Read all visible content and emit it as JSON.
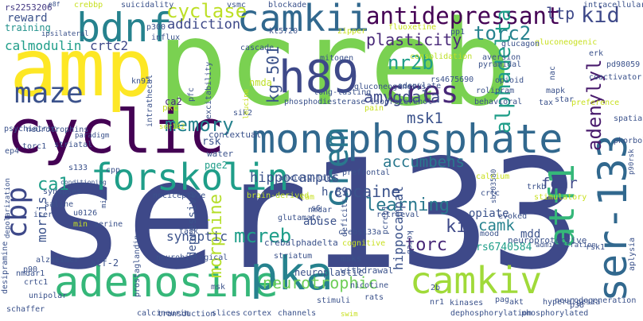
{
  "words": [
    {
      "text": "pcreb",
      "color": "#7ad151"
    },
    {
      "text": "ser133",
      "color": "#3e4989"
    },
    {
      "text": "amp",
      "color": "#fde725"
    },
    {
      "text": "monophosphate",
      "color": "#31688e"
    },
    {
      "text": "cyclic",
      "color": "#440154"
    },
    {
      "text": "camkii",
      "color": "#31688e"
    },
    {
      "text": "adenosine",
      "color": "#35b779"
    },
    {
      "text": "pka",
      "color": "#26828e"
    },
    {
      "text": "forskolin",
      "color": "#1f9e89"
    },
    {
      "text": "bdnf",
      "color": "#26828e"
    },
    {
      "text": "camkiv",
      "color": "#a0da39"
    },
    {
      "text": "ser-133",
      "color": "#31688e"
    },
    {
      "text": "crem",
      "color": "#2a788e"
    },
    {
      "text": "h89",
      "color": "#3e4989"
    },
    {
      "text": "atf1",
      "color": "#35b779"
    },
    {
      "text": "antidepressant",
      "color": "#440154"
    },
    {
      "text": "maze",
      "color": "#3b528b"
    },
    {
      "text": "cbp",
      "color": "#3e4989"
    },
    {
      "text": "cres",
      "color": "#482878"
    },
    {
      "text": "kid",
      "color": "#3e4989"
    },
    {
      "text": "torc2",
      "color": "#26828e"
    },
    {
      "text": "nr2b",
      "color": "#1f9e89"
    },
    {
      "text": "alphadelta",
      "color": "#1f9e89"
    },
    {
      "text": "adenylyl",
      "color": "#481a6c"
    },
    {
      "text": "memory",
      "color": "#26828e"
    },
    {
      "text": "cyclase",
      "color": "#bddf26"
    },
    {
      "text": "plasticity",
      "color": "#482878"
    },
    {
      "text": "amygdala",
      "color": "#3e4989"
    },
    {
      "text": "msk1",
      "color": "#3b528b"
    },
    {
      "text": "kg-501",
      "color": "#3b528b"
    },
    {
      "text": "accumbens",
      "color": "#2a788e"
    },
    {
      "text": "cocaine",
      "color": "#3b528b"
    },
    {
      "text": "mcreb",
      "color": "#1f9e89"
    },
    {
      "text": "morphine",
      "color": "#b5de2b"
    },
    {
      "text": "neurotrophic",
      "color": "#6ece58"
    },
    {
      "text": "ca1",
      "color": "#1f9e89"
    },
    {
      "text": "learning",
      "color": "#2a788e"
    },
    {
      "text": "hippocampus",
      "color": "#3b528b"
    },
    {
      "text": "morris",
      "color": "#3b528b"
    },
    {
      "text": "torc",
      "color": "#482878"
    },
    {
      "text": "kix",
      "color": "#3e4989"
    },
    {
      "text": "camk",
      "color": "#26828e"
    },
    {
      "text": "fear",
      "color": "#3e4989"
    },
    {
      "text": "ltp",
      "color": "#3e4989"
    },
    {
      "text": "addiction",
      "color": "#3e4989"
    },
    {
      "text": "calmodulin",
      "color": "#1f9e89"
    },
    {
      "text": "crtc2",
      "color": "#3e4989"
    },
    {
      "text": "reward",
      "color": "#3b528b"
    },
    {
      "text": "training",
      "color": "#21918c"
    },
    {
      "text": "rs2253206",
      "color": "#443983"
    },
    {
      "text": "ca2",
      "color": "#482878"
    },
    {
      "text": "synaptic",
      "color": "#3b528b"
    },
    {
      "text": "depressive",
      "color": "#3b528b"
    },
    {
      "text": "hippocampal",
      "color": "#3b528b"
    },
    {
      "text": "abuse",
      "color": "#3b528b"
    },
    {
      "text": "opiate",
      "color": "#3b528b"
    },
    {
      "text": "mdd",
      "color": "#3b528b"
    },
    {
      "text": "h-89",
      "color": "#3b528b"
    },
    {
      "text": "rs6740584",
      "color": "#1f9e89"
    },
    {
      "text": "nmda",
      "color": "#bddf26"
    },
    {
      "text": "rsk",
      "color": "#3b528b"
    },
    {
      "text": "contextual",
      "color": "#3b528b"
    },
    {
      "text": "pge2",
      "color": "#1f9e89"
    },
    {
      "text": "water",
      "color": "#3b528b"
    },
    {
      "text": "atf-2",
      "color": "#3b528b"
    },
    {
      "text": "neuroplastic",
      "color": "#3b528b"
    },
    {
      "text": "crebalphadelta",
      "color": "#3b528b"
    },
    {
      "text": "msks",
      "color": "#3b528b"
    },
    {
      "text": "withdrawal",
      "color": "#3b528b"
    },
    {
      "text": "neuroprotective",
      "color": "#3b528b"
    },
    {
      "text": "cognitive",
      "color": "#c8e020"
    },
    {
      "text": "crebs133a",
      "color": "#3b528b"
    },
    {
      "text": "mood",
      "color": "#3b528b"
    },
    {
      "text": "task",
      "color": "#3b528b"
    },
    {
      "text": "long-lasting",
      "color": "#3b528b"
    },
    {
      "text": "mitogen",
      "color": "#3b528b"
    },
    {
      "text": "influx",
      "color": "#3b528b"
    },
    {
      "text": "p300",
      "color": "#3b528b"
    },
    {
      "text": "nicotine",
      "color": "#3b528b"
    },
    {
      "text": "prefrontal",
      "color": "#3b528b"
    },
    {
      "text": "anxiety-like",
      "color": "#3b528b"
    },
    {
      "text": "phosphodiesterase",
      "color": "#3b528b"
    },
    {
      "text": "isoproterenol",
      "color": "#3b528b"
    },
    {
      "text": "behavioral",
      "color": "#3b528b"
    },
    {
      "text": "tax",
      "color": "#3b528b"
    },
    {
      "text": "preference",
      "color": "#c8e020"
    },
    {
      "text": "rolipram",
      "color": "#3b528b"
    },
    {
      "text": "rs4675690",
      "color": "#3b528b"
    },
    {
      "text": "opioid",
      "color": "#3b528b"
    },
    {
      "text": "adenylate",
      "color": "#3b528b"
    },
    {
      "text": "consolidation",
      "color": "#bddf26"
    },
    {
      "text": "gluconeogenic",
      "color": "#c8e020"
    },
    {
      "text": "glucagon",
      "color": "#3b528b"
    },
    {
      "text": "erk",
      "color": "#3b528b"
    },
    {
      "text": "coactivator",
      "color": "#3b528b"
    },
    {
      "text": "pd98059",
      "color": "#3b528b"
    },
    {
      "text": "calcineurin",
      "color": "#3b528b"
    },
    {
      "text": "dephosphorylation",
      "color": "#3b528b"
    },
    {
      "text": "phosphorylated",
      "color": "#3b528b"
    },
    {
      "text": "hyperalgesia",
      "color": "#3b528b"
    },
    {
      "text": "neurodegeneration",
      "color": "#3b528b"
    },
    {
      "text": "akt",
      "color": "#3b528b"
    },
    {
      "text": "p38",
      "color": "#3b528b"
    },
    {
      "text": "kinases",
      "color": "#3b528b"
    },
    {
      "text": "pag",
      "color": "#3b528b"
    },
    {
      "text": "nr1",
      "color": "#3b528b"
    },
    {
      "text": "rats",
      "color": "#3b528b"
    },
    {
      "text": "stimuli",
      "color": "#3b528b"
    },
    {
      "text": "channels",
      "color": "#3b528b"
    },
    {
      "text": "cortex",
      "color": "#3b528b"
    },
    {
      "text": "slices",
      "color": "#3b528b"
    },
    {
      "text": "transduction",
      "color": "#3b528b"
    },
    {
      "text": "schaffer",
      "color": "#3b528b"
    },
    {
      "text": "unipolar",
      "color": "#3b528b"
    },
    {
      "text": "desipramine",
      "color": "#3b528b"
    },
    {
      "text": "crtc1",
      "color": "#3b528b"
    },
    {
      "text": "p90",
      "color": "#3b528b"
    },
    {
      "text": "alzheimer",
      "color": "#3b528b"
    },
    {
      "text": "prostaglandin",
      "color": "#3b528b"
    },
    {
      "text": "neurobiological",
      "color": "#3b528b"
    },
    {
      "text": "striatum",
      "color": "#3b528b"
    },
    {
      "text": "nmdar",
      "color": "#3b528b"
    },
    {
      "text": "glutamate",
      "color": "#3b528b"
    },
    {
      "text": "msk",
      "color": "#3b528b"
    },
    {
      "text": "kcreb",
      "color": "#3b528b"
    },
    {
      "text": "retrieval",
      "color": "#3b528b"
    },
    {
      "text": "pcreb1",
      "color": "#3b528b"
    },
    {
      "text": "deficits",
      "color": "#3b528b"
    },
    {
      "text": "s6",
      "color": "#3b528b"
    },
    {
      "text": "brain-derived",
      "color": "#bddf26"
    },
    {
      "text": "nociceptive",
      "color": "#3b528b"
    },
    {
      "text": "serine",
      "color": "#3b528b"
    },
    {
      "text": "u0126",
      "color": "#3b528b"
    },
    {
      "text": "saline",
      "color": "#3b528b"
    },
    {
      "text": "synapses",
      "color": "#3b528b"
    },
    {
      "text": "conditioning",
      "color": "#3b528b"
    },
    {
      "text": "cpp",
      "color": "#3b528b"
    },
    {
      "text": "s133",
      "color": "#3b528b"
    },
    {
      "text": "ep4",
      "color": "#3b528b"
    },
    {
      "text": "torc1",
      "color": "#3b528b"
    },
    {
      "text": "striatal",
      "color": "#3b528b"
    },
    {
      "text": "neurotrophins",
      "color": "#3b528b"
    },
    {
      "text": "psychiatric",
      "color": "#3b528b"
    },
    {
      "text": "kn93",
      "color": "#3b528b"
    },
    {
      "text": "pkc",
      "color": "#c8e020"
    },
    {
      "text": "pfc",
      "color": "#3b528b"
    },
    {
      "text": "excitability",
      "color": "#3b528b"
    },
    {
      "text": "sik2",
      "color": "#3b528b"
    },
    {
      "text": "cascade",
      "color": "#3b528b"
    },
    {
      "text": "kt5720",
      "color": "#3b528b"
    },
    {
      "text": "zipper",
      "color": "#c8e020"
    },
    {
      "text": "fluoxetine",
      "color": "#c8e020"
    },
    {
      "text": "pp1",
      "color": "#3b528b"
    },
    {
      "text": "gluconeogenesis",
      "color": "#3b528b"
    },
    {
      "text": "pain",
      "color": "#c8e020"
    },
    {
      "text": "star",
      "color": "#3b528b"
    },
    {
      "text": "aversion",
      "color": "#3b528b"
    },
    {
      "text": "pyramidal",
      "color": "#3b528b"
    },
    {
      "text": "mapk",
      "color": "#3b528b"
    },
    {
      "text": "nac",
      "color": "#3b528b"
    },
    {
      "text": "spatial",
      "color": "#3b528b"
    },
    {
      "text": "phorbol",
      "color": "#3b528b"
    },
    {
      "text": "p90rsk",
      "color": "#3b528b"
    },
    {
      "text": "rsk1",
      "color": "#3b528b"
    },
    {
      "text": "aplysia",
      "color": "#3b528b"
    },
    {
      "text": "evoked",
      "color": "#3b528b"
    },
    {
      "text": "sb203580",
      "color": "#3b528b"
    },
    {
      "text": "crtc",
      "color": "#3b528b"
    },
    {
      "text": "calcium",
      "color": "#c8e020"
    },
    {
      "text": "trkb",
      "color": "#3b528b"
    },
    {
      "text": "stimulatory",
      "color": "#c8e020"
    },
    {
      "text": "administration",
      "color": "#3b528b"
    },
    {
      "text": "icer",
      "color": "#3b528b"
    },
    {
      "text": "nmdar1",
      "color": "#3b528b"
    },
    {
      "text": "depolarization",
      "color": "#3b528b"
    },
    {
      "text": "intrathecal",
      "color": "#3b528b"
    },
    {
      "text": "ser142",
      "color": "#c8e020"
    },
    {
      "text": "cam",
      "color": "#c8e020"
    },
    {
      "text": "intracellular",
      "color": "#3b528b"
    },
    {
      "text": "blockade",
      "color": "#3b528b"
    },
    {
      "text": "vsmc",
      "color": "#3b528b"
    },
    {
      "text": "suicidality",
      "color": "#3b528b"
    },
    {
      "text": "crebbp",
      "color": "#c8e020"
    },
    {
      "text": "p8f",
      "color": "#3b528b"
    },
    {
      "text": "ipsilateral",
      "color": "#3b528b"
    },
    {
      "text": "paradigm",
      "color": "#3b528b"
    },
    {
      "text": "leucine",
      "color": "#c8e020"
    },
    {
      "text": "2b",
      "color": "#3b528b"
    },
    {
      "text": "min",
      "color": "#c8e020"
    },
    {
      "text": "mir",
      "color": "#3b528b"
    },
    {
      "text": "swim",
      "color": "#c8e020"
    }
  ]
}
